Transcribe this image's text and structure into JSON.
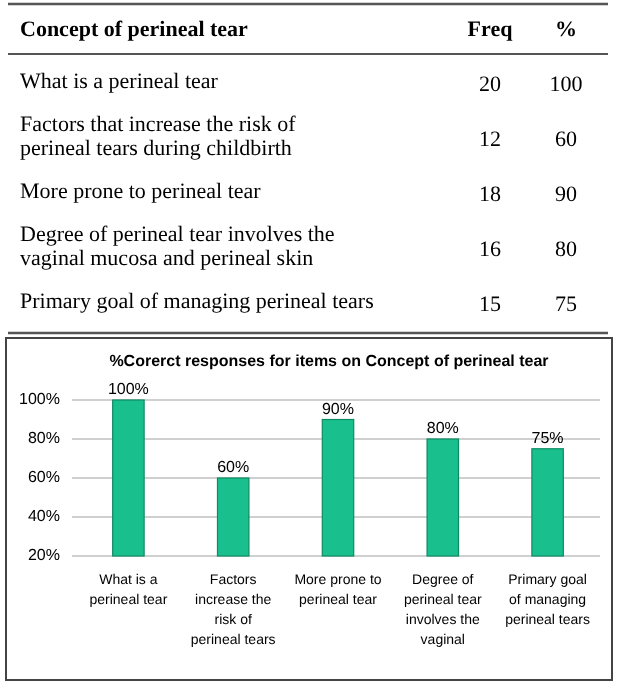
{
  "chart_data": [
    {
      "type": "other",
      "title": "Concept of perineal tear",
      "data_labels": true,
      "categories": [
        "What is a perineal tear",
        "Factors that increase the risk of perineal tears during childbirth",
        "More prone to perineal tear",
        "Degree of perineal tear involves the vaginal mucosa and perineal skin",
        "Primary goal of managing perineal tears"
      ],
      "series": [
        {
          "name": "Freq",
          "values": [
            20,
            12,
            18,
            16,
            15
          ]
        },
        {
          "name": "%",
          "values": [
            100,
            60,
            90,
            80,
            75
          ]
        }
      ]
    },
    {
      "type": "bar",
      "title": "%Corerct responses for items on Concept of perineal tear",
      "categories": [
        "What is a perineal tear",
        "Factors increase the risk of perineal tears",
        "More prone to perineal tear",
        "Degree of perineal tear involves the vaginal",
        "Primary goal of managing perineal tears"
      ],
      "values": [
        100,
        60,
        90,
        80,
        75
      ],
      "value_labels": [
        "100%",
        "60%",
        "90%",
        "80%",
        "75%"
      ],
      "color": "#19c08e",
      "ylim": [
        20,
        100
      ],
      "yticks": [
        {
          "value": 20,
          "label": "20%"
        },
        {
          "value": 40,
          "label": "40%"
        },
        {
          "value": 60,
          "label": "60%"
        },
        {
          "value": 80,
          "label": "80%"
        },
        {
          "value": 100,
          "label": "100%"
        }
      ],
      "grid": "y"
    }
  ]
}
